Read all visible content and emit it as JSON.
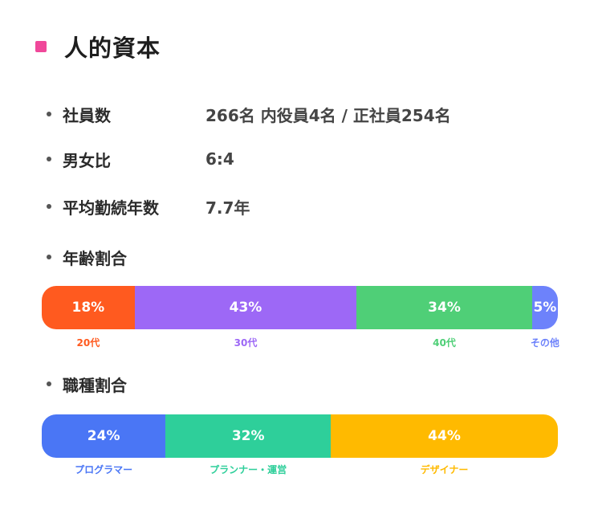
{
  "title": "人的資本",
  "colors": {
    "accent": "#f0489a"
  },
  "stats": [
    {
      "label": "社員数",
      "value": "266名  内役員4名 / 正社員254名"
    },
    {
      "label": "男女比",
      "value": "6:4"
    },
    {
      "label": "平均勤続年数",
      "value": "7.7年"
    }
  ],
  "age": {
    "label": "年齢割合",
    "segments": [
      {
        "percent": 18,
        "text": "18%",
        "caption": "20代",
        "color": "#ff5a1f"
      },
      {
        "percent": 43,
        "text": "43%",
        "caption": "30代",
        "color": "#9d68f6"
      },
      {
        "percent": 34,
        "text": "34%",
        "caption": "40代",
        "color": "#4fcf77"
      },
      {
        "percent": 5,
        "text": "5%",
        "caption": "その他",
        "color": "#6d82fb"
      }
    ]
  },
  "job": {
    "label": "職種割合",
    "segments": [
      {
        "percent": 24,
        "text": "24%",
        "caption": "プログラマー",
        "color": "#4a76f5"
      },
      {
        "percent": 32,
        "text": "32%",
        "caption": "プランナー・運営",
        "color": "#2ecf9a"
      },
      {
        "percent": 44,
        "text": "44%",
        "caption": "デザイナー",
        "color": "#ffba00"
      }
    ]
  }
}
